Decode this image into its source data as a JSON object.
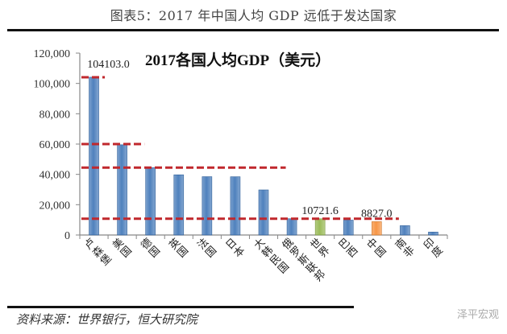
{
  "header": {
    "figure_title": "图表5：2017 年中国人均 GDP 远低于发达国家"
  },
  "footer": {
    "source": "资料来源：世界银行，恒大研究院",
    "watermark": "泽平宏观"
  },
  "colors": {
    "bar": "#4F81BD",
    "bar_world": "#9BBB59",
    "bar_china": "#F79646",
    "reference_line": "#C0282D",
    "axis": "#888888"
  },
  "chart_data": {
    "type": "bar",
    "title": "2017各国人均GDP（美元）",
    "xlabel": "",
    "ylabel": "",
    "ylim": [
      0,
      120000
    ],
    "yticks": [
      "0",
      "20,000",
      "40,000",
      "60,000",
      "80,000",
      "100,000",
      "120,000"
    ],
    "grid": false,
    "legend": null,
    "categories": [
      "卢森堡",
      "美国",
      "德国",
      "英国",
      "法国",
      "日本",
      "大韩民国",
      "俄罗斯联邦",
      "世界",
      "巴西",
      "中国",
      "南非",
      "印度"
    ],
    "values": [
      104103.0,
      59532,
      44470,
      39720,
      38477,
      38428,
      29743,
      10743,
      10721.6,
      9812,
      8827.0,
      6161,
      1940
    ],
    "data_labels": [
      {
        "category": "卢森堡",
        "text": "104103.0"
      },
      {
        "category": "世界",
        "text": "10721.6"
      },
      {
        "category": "中国",
        "text": "8827.0"
      }
    ],
    "reference_lines": [
      {
        "y": 104103,
        "x_span": [
          "卢森堡",
          "卢森堡"
        ]
      },
      {
        "y": 60000,
        "x_span": [
          "卢森堡",
          "美国"
        ]
      },
      {
        "y": 44470,
        "x_span": [
          "卢森堡",
          "大韩民国"
        ]
      },
      {
        "y": 10721.6,
        "x_span": [
          "卢森堡",
          "中国"
        ]
      }
    ],
    "highlighted": {
      "世界": "bar_world",
      "中国": "bar_china"
    }
  }
}
